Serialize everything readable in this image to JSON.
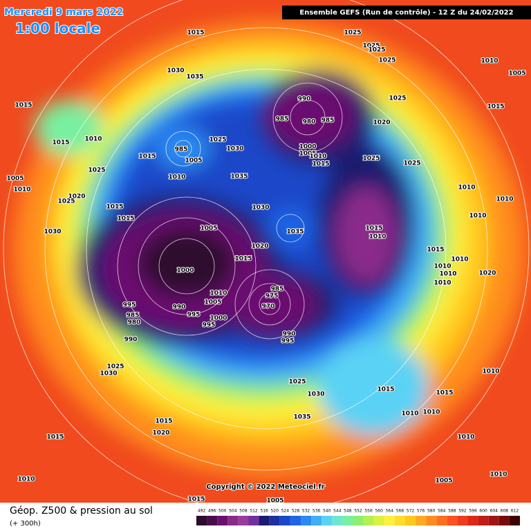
{
  "header": {
    "date": "Mercredi 9 mars 2022",
    "time": "1:00 locale",
    "model": "Ensemble GEFS  (Run de contrôle)  -  12 Z du 24/02/2022",
    "copyright": "Copyright © 2022 Meteociel.fr"
  },
  "footer": {
    "title": "Géop. Z500 & pression au sol",
    "subtitle": "(+ 300h)"
  },
  "isobar_labels": [
    1015,
    1025,
    1025,
    1025,
    1025,
    1010,
    1005,
    1030,
    1035,
    1015,
    990,
    985,
    980,
    985,
    1025,
    1015,
    1020,
    1015,
    1010,
    1030,
    1025,
    985,
    1000,
    1005,
    1010,
    1015,
    1025,
    1015,
    1005,
    1025,
    1010,
    1035,
    1025,
    1005,
    1010,
    1010,
    1020,
    1025,
    1010,
    1015,
    1030,
    1010,
    1015,
    1005,
    1035,
    1015,
    1010,
    1030,
    1020,
    1015,
    1015,
    1010,
    1010,
    1000,
    1010,
    1020,
    1010,
    985,
    975,
    970,
    1010,
    995,
    990,
    1005,
    995,
    985,
    980,
    1000,
    995,
    990,
    995,
    990,
    1025,
    1030,
    1010,
    1025,
    1015,
    1030,
    1015,
    1010,
    1010,
    1035,
    1015,
    1020,
    1015,
    1010,
    1010,
    1005,
    1010,
    1015,
    1005
  ],
  "colorbar": {
    "values": [
      492,
      496,
      500,
      504,
      508,
      512,
      516,
      520,
      524,
      528,
      532,
      536,
      540,
      544,
      548,
      552,
      556,
      560,
      564,
      568,
      572,
      576,
      580,
      584,
      588,
      592,
      596,
      600,
      604,
      608,
      612
    ],
    "colors": [
      "#2e0a2e",
      "#4a0c4a",
      "#6a1070",
      "#8a2a8a",
      "#9a3c9a",
      "#7030a0",
      "#1a1a6e",
      "#1e2fa0",
      "#1c46c8",
      "#1e64e6",
      "#2a8af0",
      "#40aef5",
      "#5ad2f5",
      "#6ee6d2",
      "#78f0a0",
      "#8cf06e",
      "#b4f050",
      "#dcf040",
      "#fff03c",
      "#ffdc28",
      "#ffc81e",
      "#ffaa1e",
      "#ff8c1e",
      "#ff6e1e",
      "#ff501e",
      "#f03c1e",
      "#dc2814",
      "#be1e14",
      "#a01414",
      "#780a0a",
      "#3c0000"
    ]
  }
}
